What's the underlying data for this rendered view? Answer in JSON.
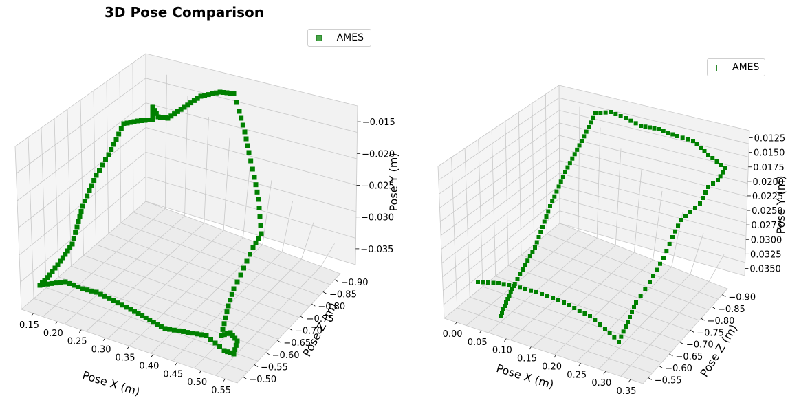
{
  "title": "3D Pose Comparison",
  "colors": {
    "marker": "#008000",
    "legend_marker": "#4aa64a",
    "pane": "#f2f2f2",
    "grid": "#c8c8c8"
  },
  "chart_data": [
    {
      "type": "scatter",
      "projection": "3d",
      "marker": "square",
      "legend": [
        "AMES"
      ],
      "xlabel": "Pose X (m)",
      "ylabel": "Pose Y (m)",
      "zlabel": "Pose Z (m)",
      "x_ticks": [
        "0.15",
        "0.20",
        "0.25",
        "0.30",
        "0.35",
        "0.40",
        "0.45",
        "0.50",
        "0.55"
      ],
      "y_ticks": [
        "−0.015",
        "−0.020",
        "−0.025",
        "−0.030",
        "−0.035"
      ],
      "z_ticks": [
        "−0.50",
        "−0.55",
        "−0.60",
        "−0.65",
        "−0.70",
        "−0.75",
        "−0.80",
        "−0.85",
        "−0.90"
      ],
      "series": [
        {
          "name": "AMES"
        }
      ]
    },
    {
      "type": "scatter",
      "projection": "3d",
      "marker": "square",
      "legend": [
        "AMES"
      ],
      "xlabel": "Pose X (m)",
      "ylabel": "Pose Y (m)",
      "zlabel": "Pose Z (m)",
      "x_ticks": [
        "0.00",
        "0.05",
        "0.10",
        "0.15",
        "0.20",
        "0.25",
        "0.30",
        "0.35"
      ],
      "y_ticks": [
        "0.0125",
        "0.0150",
        "0.0175",
        "0.0200",
        "0.0225",
        "0.0250",
        "0.0275",
        "0.0300",
        "0.0325",
        "0.0350"
      ],
      "z_ticks": [
        "−0.55",
        "−0.60",
        "−0.65",
        "−0.70",
        "−0.75",
        "−0.80",
        "−0.85",
        "−0.90"
      ],
      "series": [
        {
          "name": "AMES"
        }
      ]
    }
  ]
}
